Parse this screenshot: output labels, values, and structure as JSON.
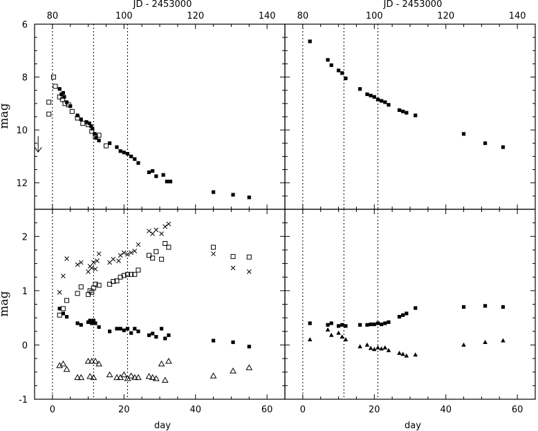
{
  "chart_data": {
    "type": "scatter",
    "top_axis": {
      "label": "JD - 2453000",
      "ticks": [
        "80",
        "100",
        "120",
        "140"
      ],
      "offset": 80
    },
    "bottom_axis": {
      "label": "day",
      "ticks": [
        "0",
        "20",
        "40",
        "60"
      ],
      "xlim": [
        -5,
        65
      ]
    },
    "reference_days": [
      0,
      11.5,
      21
    ],
    "panels": [
      {
        "id": "top-left",
        "ylabel": "mag",
        "ylim": [
          13,
          6
        ],
        "yticks": [
          "6",
          "8",
          "10",
          "12"
        ],
        "annotations": [
          {
            "type": "upper-limit-arrow",
            "x": -4,
            "y": 10.55
          }
        ],
        "series": [
          {
            "marker": "open-square",
            "points": [
              [
                -1,
                9.4
              ],
              [
                -1,
                8.95
              ],
              [
                0.3,
                8.0
              ],
              [
                0.8,
                8.35
              ],
              [
                2,
                8.75
              ],
              [
                2.8,
                8.85
              ],
              [
                3.5,
                9.0
              ],
              [
                4.5,
                9.05
              ],
              [
                5.5,
                9.3
              ],
              [
                7,
                9.55
              ],
              [
                8.5,
                9.75
              ],
              [
                10,
                9.8
              ],
              [
                11,
                10.05
              ],
              [
                12,
                10.25
              ],
              [
                13,
                10.2
              ],
              [
                15,
                10.6
              ]
            ]
          },
          {
            "marker": "filled-square",
            "points": [
              [
                2,
                8.45
              ],
              [
                2.5,
                8.65
              ],
              [
                3,
                8.6
              ],
              [
                3.3,
                8.75
              ],
              [
                4,
                8.95
              ],
              [
                5,
                9.1
              ],
              [
                7,
                9.45
              ],
              [
                8,
                9.6
              ],
              [
                9.5,
                9.7
              ],
              [
                10.3,
                9.75
              ],
              [
                10.8,
                9.85
              ],
              [
                11.2,
                9.95
              ],
              [
                11.8,
                10.15
              ],
              [
                12.2,
                10.3
              ],
              [
                13,
                10.4
              ],
              [
                16,
                10.5
              ],
              [
                18,
                10.65
              ],
              [
                19,
                10.8
              ],
              [
                20,
                10.85
              ],
              [
                21,
                10.9
              ],
              [
                22,
                11.0
              ],
              [
                23,
                11.1
              ],
              [
                24,
                11.25
              ],
              [
                27,
                11.6
              ],
              [
                28,
                11.55
              ],
              [
                29,
                11.75
              ],
              [
                31,
                11.7
              ],
              [
                32,
                11.95
              ],
              [
                33,
                11.95
              ],
              [
                45,
                12.35
              ],
              [
                50.5,
                12.45
              ],
              [
                55,
                12.55
              ]
            ]
          }
        ]
      },
      {
        "id": "top-right",
        "ylabel": "",
        "ylim": [
          13,
          6
        ],
        "yticks": [],
        "annotations": [],
        "series": [
          {
            "marker": "filled-square",
            "points": [
              [
                2,
                6.65
              ],
              [
                7,
                7.35
              ],
              [
                8,
                7.55
              ],
              [
                10,
                7.75
              ],
              [
                11,
                7.85
              ],
              [
                12,
                8.05
              ],
              [
                16,
                8.45
              ],
              [
                18,
                8.65
              ],
              [
                19,
                8.7
              ],
              [
                20,
                8.75
              ],
              [
                21,
                8.85
              ],
              [
                22,
                8.9
              ],
              [
                23,
                8.95
              ],
              [
                24,
                9.05
              ],
              [
                27,
                9.25
              ],
              [
                28,
                9.3
              ],
              [
                29,
                9.35
              ],
              [
                31.5,
                9.45
              ],
              [
                45,
                10.15
              ],
              [
                51,
                10.5
              ],
              [
                56,
                10.65
              ]
            ]
          }
        ]
      },
      {
        "id": "bottom-left",
        "ylabel": "mag",
        "ylim": [
          -1,
          2.5
        ],
        "yticks": [
          "-1",
          "0",
          "1",
          "2"
        ],
        "annotations": [],
        "series": [
          {
            "marker": "cross",
            "points": [
              [
                2,
                0.97
              ],
              [
                3,
                1.27
              ],
              [
                4,
                1.59
              ],
              [
                7,
                1.48
              ],
              [
                8,
                1.52
              ],
              [
                10,
                1.35
              ],
              [
                10.5,
                1.45
              ],
              [
                11,
                1.42
              ],
              [
                11.5,
                1.52
              ],
              [
                12,
                1.4
              ],
              [
                12.5,
                1.55
              ],
              [
                13,
                1.68
              ],
              [
                16,
                1.52
              ],
              [
                17,
                1.58
              ],
              [
                18.5,
                1.55
              ],
              [
                19,
                1.65
              ],
              [
                20,
                1.7
              ],
              [
                21,
                1.67
              ],
              [
                22,
                1.7
              ],
              [
                23,
                1.73
              ],
              [
                24,
                1.85
              ],
              [
                27,
                2.1
              ],
              [
                28,
                2.05
              ],
              [
                29,
                2.12
              ],
              [
                30.5,
                2.05
              ],
              [
                31.5,
                2.18
              ],
              [
                32.5,
                2.23
              ],
              [
                45,
                1.68
              ],
              [
                50.5,
                1.42
              ],
              [
                55,
                1.35
              ]
            ]
          },
          {
            "marker": "open-square",
            "points": [
              [
                2,
                0.55
              ],
              [
                3,
                0.67
              ],
              [
                4,
                0.82
              ],
              [
                7,
                0.95
              ],
              [
                8,
                1.07
              ],
              [
                10,
                0.93
              ],
              [
                10.5,
                1.0
              ],
              [
                11,
                0.97
              ],
              [
                11.5,
                1.05
              ],
              [
                12,
                1.12
              ],
              [
                13,
                1.1
              ],
              [
                16,
                1.12
              ],
              [
                17,
                1.17
              ],
              [
                18,
                1.18
              ],
              [
                19,
                1.25
              ],
              [
                20,
                1.28
              ],
              [
                21,
                1.3
              ],
              [
                22,
                1.3
              ],
              [
                23,
                1.3
              ],
              [
                24,
                1.38
              ],
              [
                27,
                1.65
              ],
              [
                28,
                1.6
              ],
              [
                29,
                1.72
              ],
              [
                30.5,
                1.58
              ],
              [
                31.5,
                1.87
              ],
              [
                32.5,
                1.8
              ],
              [
                45,
                1.8
              ],
              [
                50.5,
                1.63
              ],
              [
                55,
                1.62
              ]
            ]
          },
          {
            "marker": "filled-square",
            "points": [
              [
                2,
                0.67
              ],
              [
                3,
                0.58
              ],
              [
                4,
                0.52
              ],
              [
                7,
                0.4
              ],
              [
                8,
                0.37
              ],
              [
                10,
                0.42
              ],
              [
                10.5,
                0.45
              ],
              [
                11,
                0.4
              ],
              [
                11.5,
                0.45
              ],
              [
                12,
                0.4
              ],
              [
                13,
                0.33
              ],
              [
                16,
                0.25
              ],
              [
                18,
                0.3
              ],
              [
                19,
                0.3
              ],
              [
                20,
                0.27
              ],
              [
                21,
                0.3
              ],
              [
                22,
                0.22
              ],
              [
                23,
                0.3
              ],
              [
                24,
                0.25
              ],
              [
                27,
                0.18
              ],
              [
                28,
                0.21
              ],
              [
                29,
                0.15
              ],
              [
                30.5,
                0.3
              ],
              [
                31.5,
                0.12
              ],
              [
                32.5,
                0.18
              ],
              [
                45,
                0.08
              ],
              [
                50.5,
                0.05
              ],
              [
                55,
                -0.03
              ]
            ]
          },
          {
            "marker": "open-triangle",
            "points": [
              [
                2,
                -0.38
              ],
              [
                3,
                -0.35
              ],
              [
                4,
                -0.45
              ],
              [
                7,
                -0.6
              ],
              [
                8,
                -0.6
              ],
              [
                10,
                -0.3
              ],
              [
                10.5,
                -0.58
              ],
              [
                11,
                -0.3
              ],
              [
                11.5,
                -0.6
              ],
              [
                12,
                -0.3
              ],
              [
                13,
                -0.35
              ],
              [
                16,
                -0.55
              ],
              [
                18,
                -0.6
              ],
              [
                19,
                -0.6
              ],
              [
                20,
                -0.55
              ],
              [
                21,
                -0.62
              ],
              [
                22,
                -0.57
              ],
              [
                23,
                -0.6
              ],
              [
                24,
                -0.6
              ],
              [
                27,
                -0.58
              ],
              [
                28,
                -0.6
              ],
              [
                29,
                -0.62
              ],
              [
                30.5,
                -0.35
              ],
              [
                31.5,
                -0.65
              ],
              [
                32.5,
                -0.3
              ],
              [
                45,
                -0.57
              ],
              [
                50.5,
                -0.48
              ],
              [
                55,
                -0.42
              ]
            ]
          }
        ]
      },
      {
        "id": "bottom-right",
        "ylabel": "",
        "ylim": [
          -1,
          2.5
        ],
        "yticks": [],
        "annotations": [],
        "series": [
          {
            "marker": "filled-square",
            "points": [
              [
                2,
                0.4
              ],
              [
                7,
                0.37
              ],
              [
                8,
                0.4
              ],
              [
                10,
                0.35
              ],
              [
                11,
                0.37
              ],
              [
                12,
                0.35
              ],
              [
                16,
                0.37
              ],
              [
                18,
                0.37
              ],
              [
                19,
                0.38
              ],
              [
                20,
                0.38
              ],
              [
                21,
                0.4
              ],
              [
                22,
                0.38
              ],
              [
                23,
                0.4
              ],
              [
                24,
                0.42
              ],
              [
                27,
                0.52
              ],
              [
                28,
                0.55
              ],
              [
                29,
                0.58
              ],
              [
                31.5,
                0.68
              ],
              [
                45,
                0.7
              ],
              [
                51,
                0.72
              ],
              [
                56,
                0.7
              ]
            ]
          },
          {
            "marker": "filled-triangle",
            "points": [
              [
                2,
                0.1
              ],
              [
                7,
                0.28
              ],
              [
                8,
                0.18
              ],
              [
                10,
                0.22
              ],
              [
                11,
                0.15
              ],
              [
                12,
                0.1
              ],
              [
                16,
                -0.03
              ],
              [
                18,
                0.0
              ],
              [
                19,
                -0.06
              ],
              [
                20,
                -0.08
              ],
              [
                21,
                -0.05
              ],
              [
                22,
                -0.07
              ],
              [
                23,
                -0.05
              ],
              [
                24,
                -0.1
              ],
              [
                27,
                -0.15
              ],
              [
                28,
                -0.17
              ],
              [
                29,
                -0.2
              ],
              [
                31.5,
                -0.18
              ],
              [
                45,
                0.0
              ],
              [
                51,
                0.05
              ],
              [
                56,
                0.08
              ]
            ]
          }
        ]
      }
    ]
  }
}
